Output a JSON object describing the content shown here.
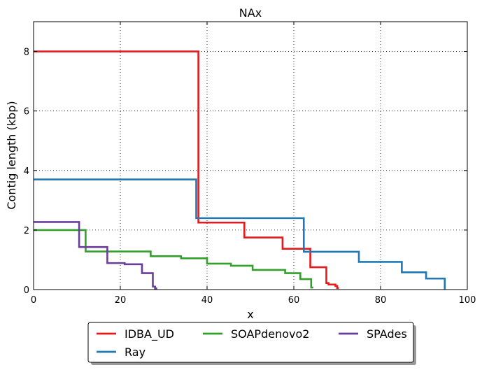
{
  "chart_data": {
    "type": "line",
    "title": "NAx",
    "xlabel": "x",
    "ylabel": "Contig length  (kbp)",
    "xlim": [
      0,
      100
    ],
    "ylim": [
      0,
      9
    ],
    "x_ticks": [
      "0",
      "20",
      "40",
      "60",
      "80",
      "100"
    ],
    "y_ticks": [
      "0",
      "2",
      "4",
      "6",
      "8"
    ],
    "grid": true,
    "legend_position": "bottom-center, outside",
    "series": [
      {
        "name": "IDBA_UD",
        "color": "#e41a1c",
        "step": true,
        "x": [
          0,
          38.0,
          38.0,
          48.6,
          48.6,
          57.4,
          57.4,
          63.8,
          63.8,
          67.5,
          67.5,
          68.0,
          68.0,
          69.6,
          69.6,
          70.0,
          70.0,
          70.4
        ],
        "y": [
          8.0,
          8.0,
          2.25,
          2.25,
          1.75,
          1.75,
          1.37,
          1.37,
          0.75,
          0.75,
          0.22,
          0.22,
          0.17,
          0.17,
          0.12,
          0.12,
          0.05,
          0.05
        ]
      },
      {
        "name": "Ray",
        "color": "#1f78b4",
        "step": true,
        "x": [
          0,
          37.5,
          37.5,
          62.3,
          62.3,
          75.0,
          75.0,
          84.9,
          84.9,
          90.5,
          90.5,
          94.8,
          94.8
        ],
        "y": [
          3.7,
          3.7,
          2.4,
          2.4,
          1.27,
          1.27,
          0.93,
          0.93,
          0.58,
          0.58,
          0.37,
          0.37,
          0
        ]
      },
      {
        "name": "SOAPdenovo2",
        "color": "#33a02c",
        "step": true,
        "x": [
          0,
          12.0,
          12.0,
          27.0,
          27.0,
          34.0,
          34.0,
          40.0,
          40.0,
          45.5,
          45.5,
          50.5,
          50.5,
          58.0,
          58.0,
          61.5,
          61.5,
          64.0,
          64.0,
          64.5
        ],
        "y": [
          2.0,
          2.0,
          1.28,
          1.28,
          1.12,
          1.12,
          1.05,
          1.05,
          0.87,
          0.87,
          0.8,
          0.8,
          0.66,
          0.66,
          0.55,
          0.55,
          0.35,
          0.35,
          0.07,
          0.07
        ]
      },
      {
        "name": "SPAdes",
        "color": "#6a3d9a",
        "step": true,
        "x": [
          0,
          10.5,
          10.5,
          17.0,
          17.0,
          21.0,
          21.0,
          25.0,
          25.0,
          27.5,
          27.5,
          28.0,
          28.0,
          28.5
        ],
        "y": [
          2.27,
          2.27,
          1.43,
          1.43,
          0.89,
          0.89,
          0.85,
          0.85,
          0.55,
          0.55,
          0.1,
          0.1,
          0.04,
          0.04
        ]
      }
    ],
    "legend_items": [
      {
        "label": "IDBA_UD",
        "color": "#e41a1c"
      },
      {
        "label": "SOAPdenovo2",
        "color": "#33a02c"
      },
      {
        "label": "SPAdes",
        "color": "#6a3d9a"
      },
      {
        "label": "Ray",
        "color": "#1f78b4"
      }
    ]
  }
}
